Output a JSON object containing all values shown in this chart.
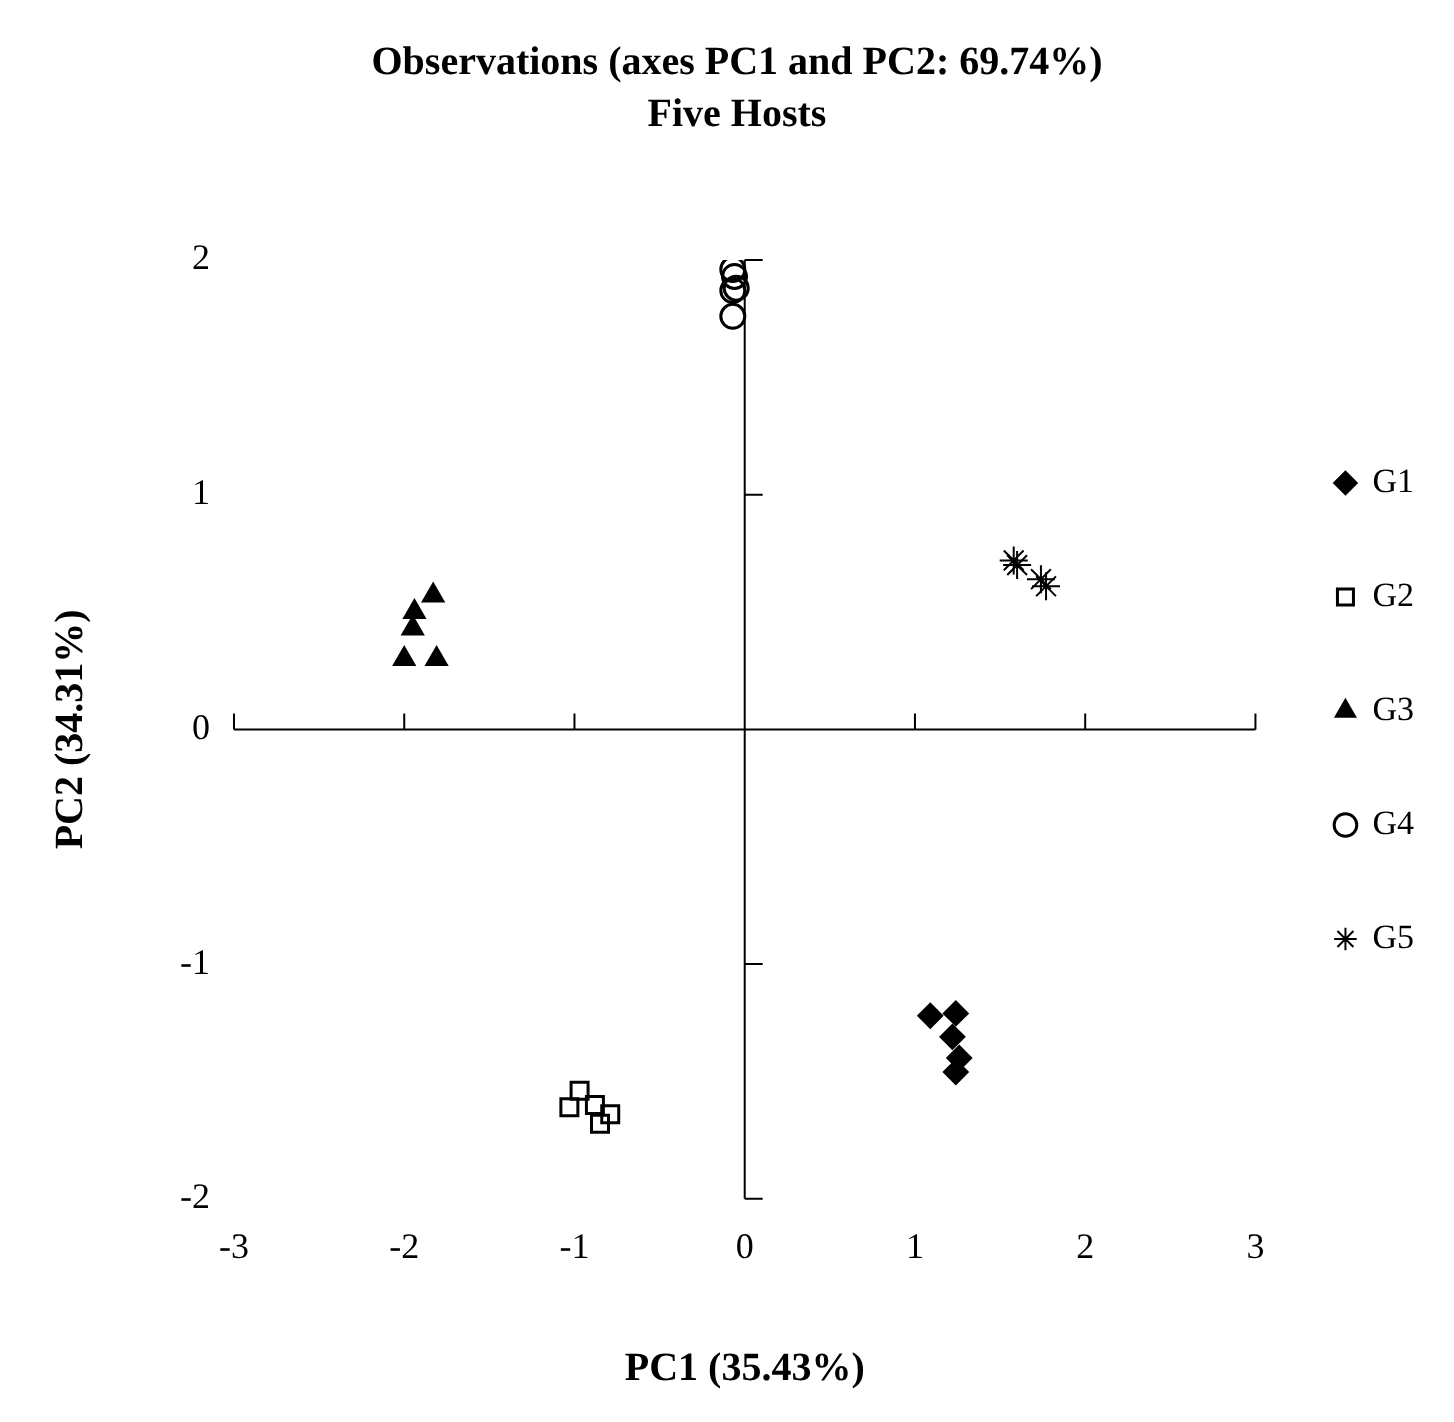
{
  "chart_data": {
    "type": "scatter",
    "title": "Observations (axes PC1 and PC2: 69.74%)",
    "subtitle": "Five Hosts",
    "xlabel": "PC1 (35.43%)",
    "ylabel": "PC2 (34.31%)",
    "xlim": [
      -3,
      3
    ],
    "xticks": [
      -3,
      -2,
      -1,
      0,
      1,
      2,
      3
    ],
    "ylim": [
      -2,
      2
    ],
    "yticks": [
      -2,
      -1,
      0,
      1,
      2
    ],
    "legend": "right",
    "series": [
      {
        "name": "G1",
        "color": "#000000",
        "marker": "diamond",
        "x": [
          1.09,
          1.24,
          1.22,
          1.26,
          1.24
        ],
        "values": [
          -1.22,
          -1.21,
          -1.31,
          -1.4,
          -1.46
        ]
      },
      {
        "name": "G2",
        "color": "#000000",
        "marker": "square",
        "x": [
          -0.97,
          -1.03,
          -0.88,
          -0.79,
          -0.85
        ],
        "values": [
          -1.54,
          -1.61,
          -1.6,
          -1.64,
          -1.68
        ]
      },
      {
        "name": "G3",
        "color": "#000000",
        "marker": "triangle",
        "x": [
          -1.83,
          -1.94,
          -1.95,
          -2.0,
          -1.81
        ],
        "values": [
          0.57,
          0.5,
          0.43,
          0.3,
          0.3
        ]
      },
      {
        "name": "G4",
        "color": "#000000",
        "marker": "circle",
        "x": [
          -0.07,
          -0.06,
          -0.05,
          -0.07,
          -0.07
        ],
        "values": [
          1.96,
          1.93,
          1.88,
          1.87,
          1.76
        ]
      },
      {
        "name": "G5",
        "color": "#000000",
        "marker": "cross",
        "x": [
          1.58,
          1.6,
          1.74,
          1.77
        ],
        "values": [
          0.72,
          0.7,
          0.64,
          0.61
        ]
      }
    ]
  }
}
